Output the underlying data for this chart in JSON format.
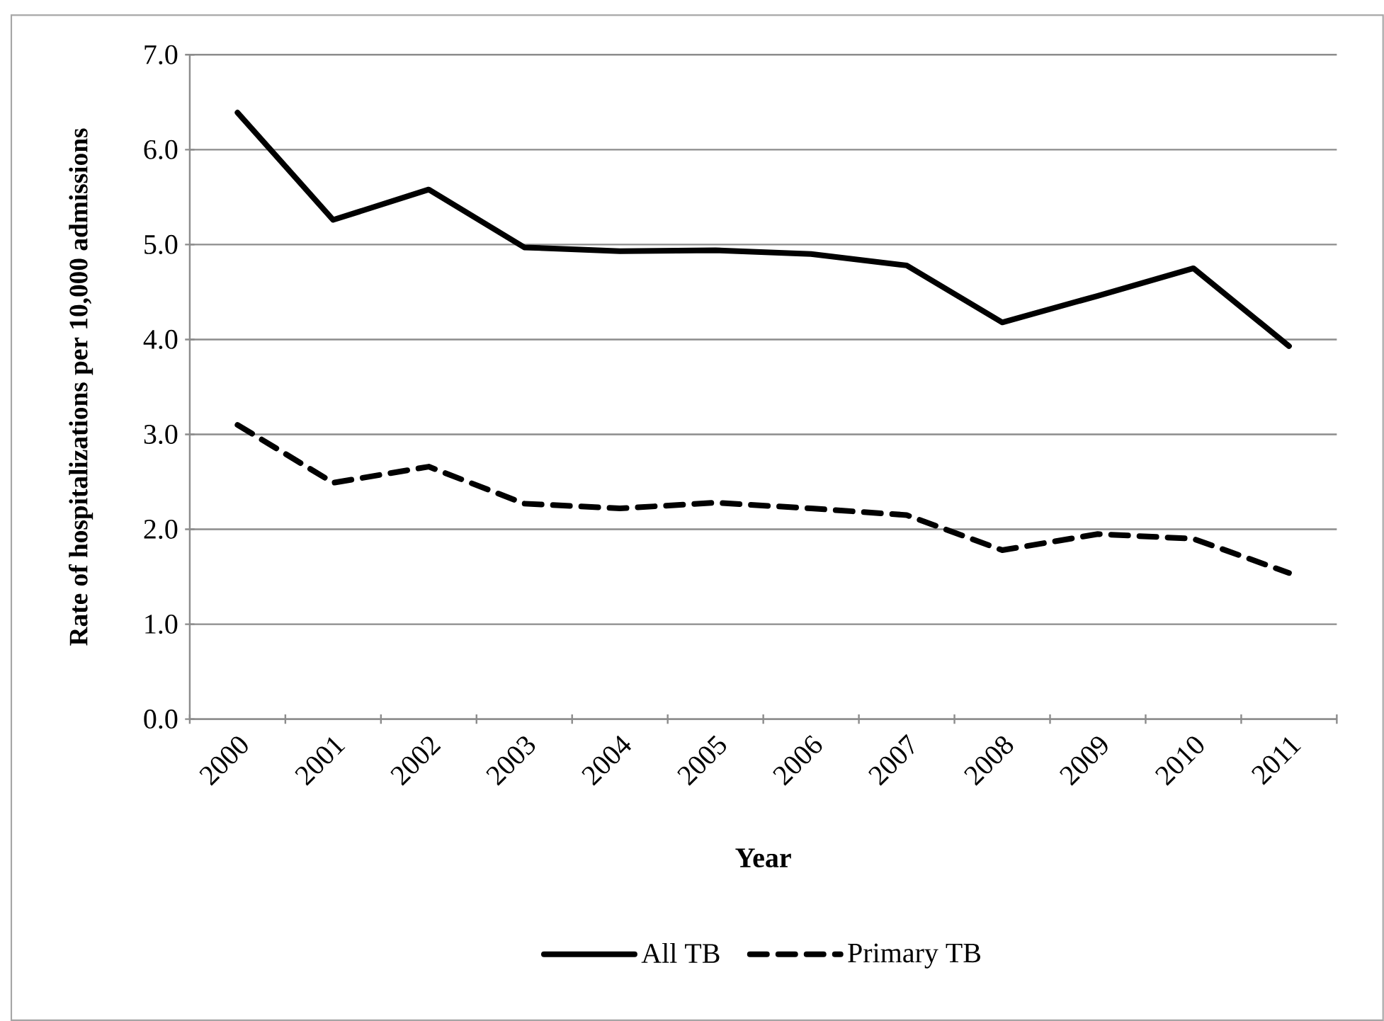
{
  "chart_data": {
    "type": "line",
    "categories": [
      "2000",
      "2001",
      "2002",
      "2003",
      "2004",
      "2005",
      "2006",
      "2007",
      "2008",
      "2009",
      "2010",
      "2011"
    ],
    "xlabel": "Year",
    "ylabel": "Rate of hospitalizations per 10,000 admissions",
    "series": [
      {
        "name": "All TB",
        "color": "#000000",
        "line_style": "solid",
        "values": [
          6.39,
          5.26,
          5.58,
          4.97,
          4.93,
          4.94,
          4.9,
          4.78,
          4.18,
          4.46,
          4.75,
          3.93
        ]
      },
      {
        "name": "Primary TB",
        "color": "#000000",
        "line_style": "dashed",
        "values": [
          3.1,
          2.49,
          2.66,
          2.27,
          2.22,
          2.28,
          2.22,
          2.15,
          1.78,
          1.95,
          1.9,
          1.54
        ]
      }
    ],
    "ylim": [
      0,
      7
    ],
    "yticks": [
      {
        "value": 0,
        "label": "0.0"
      },
      {
        "value": 1,
        "label": "1.0"
      },
      {
        "value": 2,
        "label": "2.0"
      },
      {
        "value": 3,
        "label": "3.0"
      },
      {
        "value": 4,
        "label": "4.0"
      },
      {
        "value": 5,
        "label": "5.0"
      },
      {
        "value": 6,
        "label": "6.0"
      },
      {
        "value": 7,
        "label": "7.0"
      }
    ],
    "grid": "y",
    "legend": "bottom"
  }
}
